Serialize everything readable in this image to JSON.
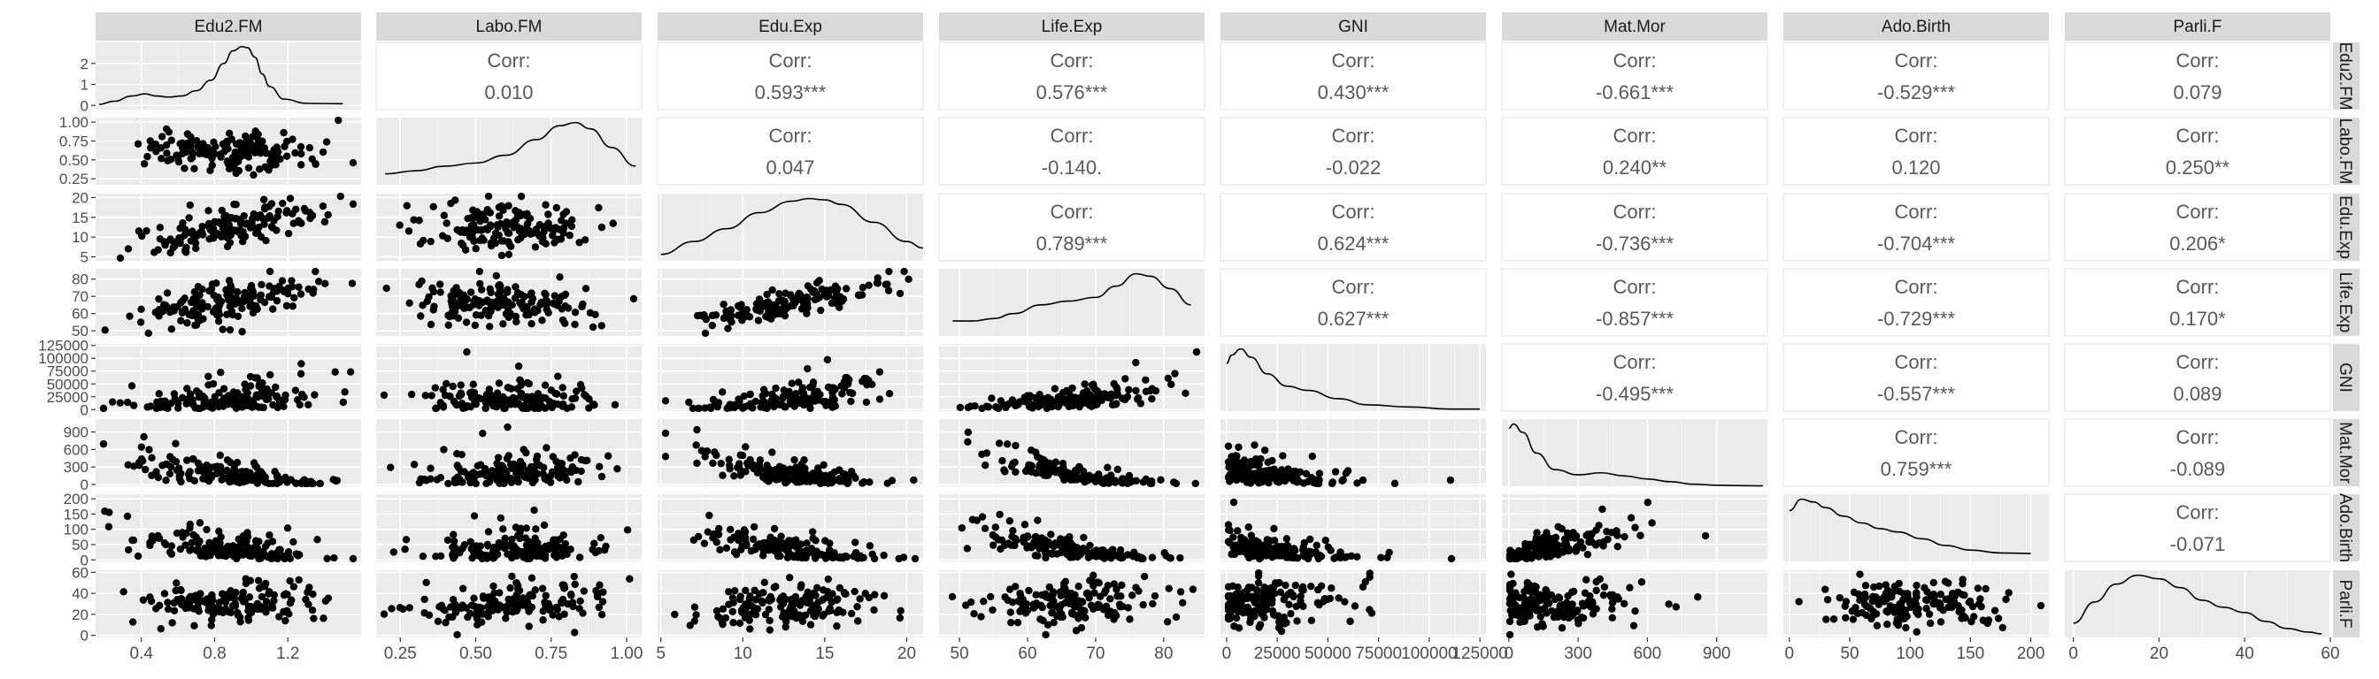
{
  "chart_data": {
    "type": "scatter",
    "variables": [
      "Edu2.FM",
      "Labo.FM",
      "Edu.Exp",
      "Life.Exp",
      "GNI",
      "Mat.Mor",
      "Ado.Birth",
      "Parli.F"
    ],
    "row_strip_labels": [
      "Edu2.FM",
      "Labo.FM",
      "Edu.Exp",
      "Life.Exp",
      "GNI",
      "Mat.Mor",
      "Ado.Birth",
      "Parli.F"
    ],
    "corr_label": "Corr:",
    "correlations": [
      {
        "row": 0,
        "col": 1,
        "text": "0.010"
      },
      {
        "row": 0,
        "col": 2,
        "text": "0.593***"
      },
      {
        "row": 0,
        "col": 3,
        "text": "0.576***"
      },
      {
        "row": 0,
        "col": 4,
        "text": "0.430***"
      },
      {
        "row": 0,
        "col": 5,
        "text": "-0.661***"
      },
      {
        "row": 0,
        "col": 6,
        "text": "-0.529***"
      },
      {
        "row": 0,
        "col": 7,
        "text": "0.079"
      },
      {
        "row": 1,
        "col": 2,
        "text": "0.047"
      },
      {
        "row": 1,
        "col": 3,
        "text": "-0.140."
      },
      {
        "row": 1,
        "col": 4,
        "text": "-0.022"
      },
      {
        "row": 1,
        "col": 5,
        "text": "0.240**"
      },
      {
        "row": 1,
        "col": 6,
        "text": "0.120"
      },
      {
        "row": 1,
        "col": 7,
        "text": "0.250**"
      },
      {
        "row": 2,
        "col": 3,
        "text": "0.789***"
      },
      {
        "row": 2,
        "col": 4,
        "text": "0.624***"
      },
      {
        "row": 2,
        "col": 5,
        "text": "-0.736***"
      },
      {
        "row": 2,
        "col": 6,
        "text": "-0.704***"
      },
      {
        "row": 2,
        "col": 7,
        "text": "0.206*"
      },
      {
        "row": 3,
        "col": 4,
        "text": "0.627***"
      },
      {
        "row": 3,
        "col": 5,
        "text": "-0.857***"
      },
      {
        "row": 3,
        "col": 6,
        "text": "-0.729***"
      },
      {
        "row": 3,
        "col": 7,
        "text": "0.170*"
      },
      {
        "row": 4,
        "col": 5,
        "text": "-0.495***"
      },
      {
        "row": 4,
        "col": 6,
        "text": "-0.557***"
      },
      {
        "row": 4,
        "col": 7,
        "text": "0.089"
      },
      {
        "row": 5,
        "col": 6,
        "text": "0.759***"
      },
      {
        "row": 5,
        "col": 7,
        "text": "-0.089"
      },
      {
        "row": 6,
        "col": 7,
        "text": "-0.071"
      }
    ],
    "x_axes": [
      {
        "range": [
          0.15,
          1.6
        ],
        "ticks": [
          0.4,
          0.8,
          1.2
        ],
        "labels": [
          "0.4",
          "0.8",
          "1.2"
        ]
      },
      {
        "range": [
          0.17,
          1.05
        ],
        "ticks": [
          0.25,
          0.5,
          0.75,
          1.0
        ],
        "labels": [
          "0.25",
          "0.50",
          "0.75",
          "1.00"
        ]
      },
      {
        "range": [
          4.8,
          21
        ],
        "ticks": [
          5,
          10,
          15,
          20
        ],
        "labels": [
          "5",
          "10",
          "15",
          "20"
        ]
      },
      {
        "range": [
          47,
          86
        ],
        "ticks": [
          50,
          60,
          70,
          80
        ],
        "labels": [
          "50",
          "60",
          "70",
          "80"
        ]
      },
      {
        "range": [
          -3000,
          128000
        ],
        "ticks": [
          0,
          25000,
          50000,
          75000,
          100000,
          125000
        ],
        "labels": [
          "0",
          "25000",
          "50000",
          "75000",
          "100000",
          "125000"
        ]
      },
      {
        "range": [
          -30,
          1120
        ],
        "ticks": [
          0,
          300,
          600,
          900
        ],
        "labels": [
          "0",
          "300",
          "600",
          "900"
        ]
      },
      {
        "range": [
          -5,
          215
        ],
        "ticks": [
          0,
          50,
          100,
          150,
          200
        ],
        "labels": [
          "0",
          "50",
          "100",
          "150",
          "200"
        ]
      },
      {
        "range": [
          -2,
          60
        ],
        "ticks": [
          0,
          20,
          40,
          60
        ],
        "labels": [
          "0",
          "20",
          "40",
          "60"
        ]
      }
    ],
    "y_axes": [
      {
        "range": [
          -0.2,
          3.0
        ],
        "ticks": [
          0,
          1,
          2
        ],
        "labels": [
          "0",
          "1",
          "2"
        ]
      },
      {
        "range": [
          0.17,
          1.06
        ],
        "ticks": [
          0.25,
          0.5,
          0.75,
          1.0
        ],
        "labels": [
          "0.25",
          "0.50",
          "0.75",
          "1.00"
        ]
      },
      {
        "range": [
          4,
          21
        ],
        "ticks": [
          5,
          10,
          15,
          20
        ],
        "labels": [
          "5",
          "10",
          "15",
          "20"
        ]
      },
      {
        "range": [
          47,
          86
        ],
        "ticks": [
          50,
          60,
          70,
          80
        ],
        "labels": [
          "50",
          "60",
          "70",
          "80"
        ]
      },
      {
        "range": [
          -3000,
          128000
        ],
        "ticks": [
          0,
          25000,
          50000,
          75000,
          100000,
          125000
        ],
        "labels": [
          "0",
          "25000",
          "50000",
          "75000",
          "100000",
          "125000"
        ]
      },
      {
        "range": [
          -30,
          1120
        ],
        "ticks": [
          0,
          300,
          600,
          900
        ],
        "labels": [
          "0",
          "300",
          "600",
          "900"
        ]
      },
      {
        "range": [
          -5,
          215
        ],
        "ticks": [
          0,
          50,
          100,
          150,
          200
        ],
        "labels": [
          "0",
          "50",
          "100",
          "150",
          "200"
        ]
      },
      {
        "range": [
          -2,
          62
        ],
        "ticks": [
          0,
          20,
          40,
          60
        ],
        "labels": [
          "0",
          "20",
          "40",
          "60"
        ]
      }
    ],
    "densities": [
      {
        "col": 0,
        "x": [
          0.17,
          0.25,
          0.35,
          0.42,
          0.48,
          0.55,
          0.62,
          0.7,
          0.78,
          0.85,
          0.9,
          0.95,
          0.98,
          1.02,
          1.06,
          1.1,
          1.18,
          1.3,
          1.5
        ],
        "y": [
          0.05,
          0.2,
          0.45,
          0.55,
          0.45,
          0.4,
          0.45,
          0.7,
          1.2,
          2.0,
          2.6,
          2.8,
          2.75,
          2.3,
          1.5,
          0.9,
          0.3,
          0.1,
          0.08
        ]
      },
      {
        "col": 1,
        "x": [
          0.2,
          0.3,
          0.4,
          0.5,
          0.6,
          0.7,
          0.78,
          0.83,
          0.88,
          0.95,
          1.03
        ],
        "y": [
          0.35,
          0.45,
          0.6,
          0.7,
          0.95,
          1.45,
          1.9,
          2.0,
          1.8,
          1.2,
          0.6
        ]
      },
      {
        "col": 2,
        "x": [
          5,
          7,
          9,
          11,
          13,
          14,
          15,
          16,
          18,
          20,
          21
        ],
        "y": [
          0.01,
          0.03,
          0.05,
          0.075,
          0.093,
          0.097,
          0.095,
          0.088,
          0.06,
          0.03,
          0.02
        ]
      },
      {
        "col": 3,
        "x": [
          49,
          52,
          55,
          58,
          62,
          66,
          70,
          73,
          76,
          78,
          81,
          84
        ],
        "y": [
          0.012,
          0.012,
          0.014,
          0.018,
          0.025,
          0.028,
          0.031,
          0.04,
          0.05,
          0.048,
          0.038,
          0.025
        ]
      },
      {
        "col": 4,
        "x": [
          0,
          2500,
          7000,
          12000,
          20000,
          30000,
          40000,
          55000,
          70000,
          90000,
          110000,
          125000
        ],
        "y": [
          2.3e-05,
          2.7e-05,
          3e-05,
          2.6e-05,
          1.8e-05,
          1.2e-05,
          1e-05,
          6e-06,
          3e-06,
          2e-06,
          1e-06,
          1e-06
        ]
      },
      {
        "col": 5,
        "x": [
          0,
          20,
          60,
          120,
          200,
          300,
          400,
          500,
          600,
          700,
          800,
          900,
          1000,
          1100
        ],
        "y": [
          0.0028,
          0.003,
          0.0026,
          0.0016,
          0.0008,
          0.00055,
          0.00065,
          0.0005,
          0.00035,
          0.00022,
          0.0001,
          5e-05,
          3e-05,
          2e-05
        ]
      },
      {
        "col": 6,
        "x": [
          0,
          10,
          20,
          30,
          45,
          60,
          75,
          90,
          110,
          130,
          150,
          175,
          200
        ],
        "y": [
          0.009,
          0.011,
          0.0105,
          0.0095,
          0.008,
          0.0068,
          0.0058,
          0.0052,
          0.004,
          0.0028,
          0.002,
          0.0015,
          0.0014
        ]
      },
      {
        "col": 7,
        "x": [
          0,
          5,
          10,
          15,
          20,
          25,
          30,
          35,
          40,
          45,
          50,
          55,
          58
        ],
        "y": [
          0.008,
          0.02,
          0.03,
          0.035,
          0.033,
          0.028,
          0.021,
          0.017,
          0.014,
          0.009,
          0.005,
          0.003,
          0.002
        ]
      }
    ],
    "grid": true,
    "point_color": "#000000",
    "panel_background": "#ebebeb",
    "strip_background": "#d9d9d9"
  }
}
